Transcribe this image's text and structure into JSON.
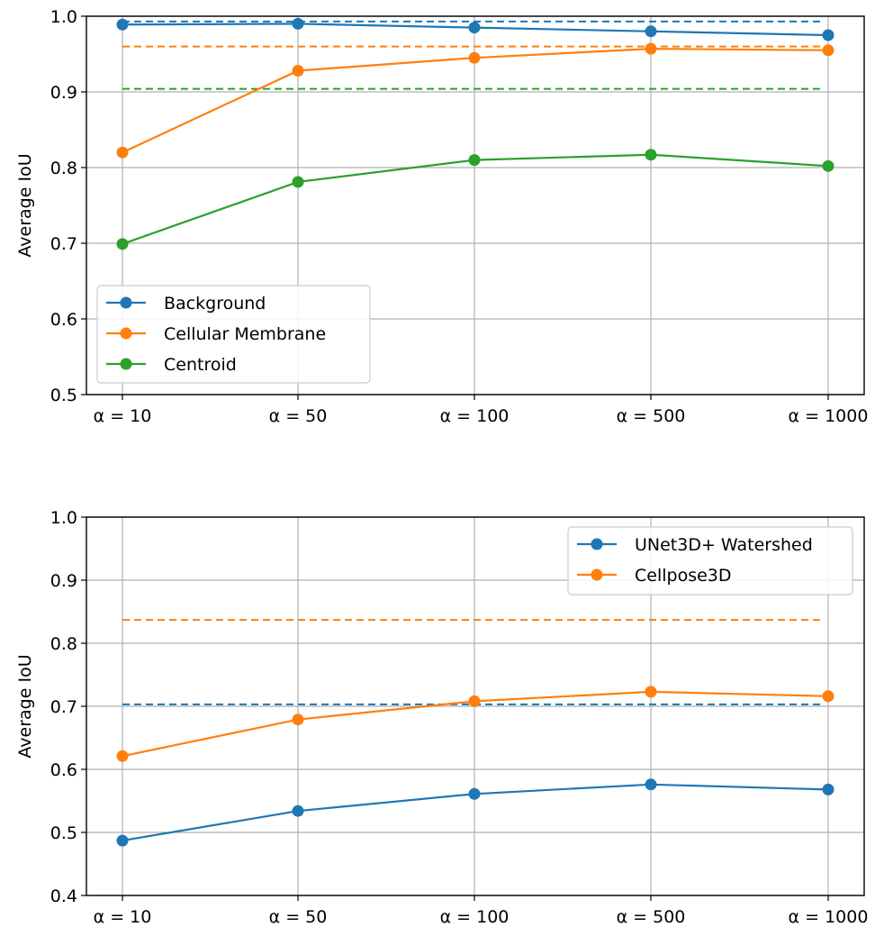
{
  "chart_data": [
    {
      "type": "line",
      "title": "",
      "xlabel": "",
      "ylabel": "Average IoU",
      "categories": [
        "α = 10",
        "α = 50",
        "α = 100",
        "α = 500",
        "α = 1000"
      ],
      "ylim": [
        0.5,
        1.0
      ],
      "yticks": [
        "0.5",
        "0.6",
        "0.7",
        "0.8",
        "0.9",
        "1.0"
      ],
      "grid": true,
      "legend_position": "bottom-left",
      "series": [
        {
          "name": "Background",
          "color": "#1f77b4",
          "values": [
            0.989,
            0.99,
            0.985,
            0.98,
            0.975
          ]
        },
        {
          "name": "Cellular Membrane",
          "color": "#ff7f0e",
          "values": [
            0.82,
            0.928,
            0.945,
            0.957,
            0.955
          ]
        },
        {
          "name": "Centroid",
          "color": "#2ca02c",
          "values": [
            0.699,
            0.781,
            0.81,
            0.817,
            0.802
          ]
        }
      ],
      "reference_lines": [
        {
          "color": "#1f77b4",
          "value": 0.993,
          "style": "dashed"
        },
        {
          "color": "#ff7f0e",
          "value": 0.96,
          "style": "dashed"
        },
        {
          "color": "#2ca02c",
          "value": 0.904,
          "style": "dashed"
        }
      ]
    },
    {
      "type": "line",
      "title": "",
      "xlabel": "",
      "ylabel": "Average IoU",
      "categories": [
        "α = 10",
        "α = 50",
        "α = 100",
        "α = 500",
        "α = 1000"
      ],
      "ylim": [
        0.4,
        1.0
      ],
      "yticks": [
        "0.4",
        "0.5",
        "0.6",
        "0.7",
        "0.8",
        "0.9",
        "1.0"
      ],
      "grid": true,
      "legend_position": "top-right",
      "series": [
        {
          "name": "UNet3D+ Watershed",
          "color": "#1f77b4",
          "values": [
            0.487,
            0.534,
            0.561,
            0.576,
            0.568
          ]
        },
        {
          "name": "Cellpose3D",
          "color": "#ff7f0e",
          "values": [
            0.621,
            0.679,
            0.708,
            0.723,
            0.716
          ]
        }
      ],
      "reference_lines": [
        {
          "color": "#1f77b4",
          "value": 0.703,
          "style": "dashed"
        },
        {
          "color": "#ff7f0e",
          "value": 0.837,
          "style": "dashed"
        }
      ]
    }
  ]
}
